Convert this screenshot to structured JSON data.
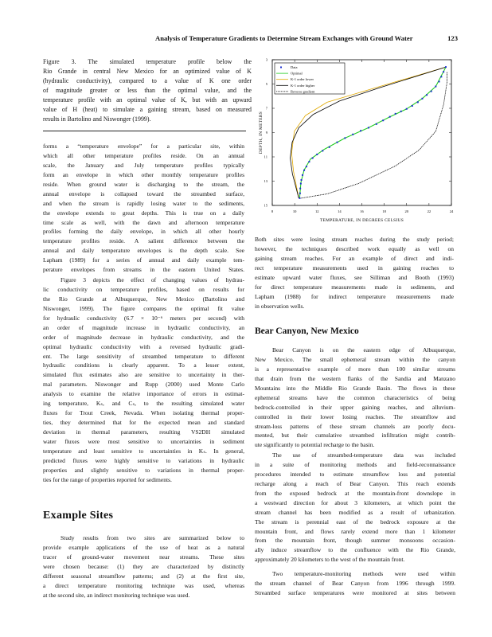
{
  "header": {
    "running_title": "Analysis of Temperature Gradients to Determine Stream Exchanges with Ground Water",
    "page_number": "123"
  },
  "caption": {
    "lines": [
      "Figure 3.  The simulated temperature profile below the",
      "Rio Grande in central New Mexico for an optimized value of K",
      "(hydraulic conductivity), compared to a value of K one order",
      "of magnitude greater or less than the optimal value, and the",
      "temperature profile with an optimal value of K, but with an upward",
      "value of H (heat) to simulate a gaining stream, based on measured",
      "results in Bartolino and Niswonger (1999)."
    ]
  },
  "left_column": {
    "para1": [
      "forms a “temperature envelope” for a particular site, within",
      "which all other temperature profiles reside. On an annual",
      "scale, the January and July temperature profiles typically",
      "form an envelope in which other monthly temperature profiles",
      "reside. When ground water is discharging to the stream, the",
      "annual envelope is collapsed toward the streambed surface,",
      "and when the stream is rapidly losing water to the sediments,",
      "the envelope extends to great depths. This is true on a daily",
      "time scale as well, with the dawn and afternoon temperature",
      "profiles forming the daily envelope, in which all other hourly",
      "temperature profiles reside. A salient difference between the",
      "annual and daily temperature envelopes is the depth scale. See",
      "Lapham (1989) for a series of annual and daily example tem-",
      "perature envelopes from streams in the eastern United States."
    ],
    "para2": [
      "Figure 3 depicts the effect of changing values of hydrau-",
      "lic conductivity on temperature profiles, based on results for",
      "the Rio Grande at Albuquerque, New Mexico (Bartolino and",
      "Niswonger, 1999). The figure compares the optimal fit value",
      "for hydraulic conductivity (6.7 × 10⁻⁶ meters per second) with",
      "an order of magnitude increase in hydraulic conductivity, an",
      "order of magnitude decrease in hydraulic conductivity, and the",
      "optimal hydraulic conductivity with a reversed hydraulic gradi-",
      "ent. The large sensitivity of streambed temperature to different",
      "hydraulic conditions is clearly apparent. To a lesser extent,",
      "simulated flux estimates also are sensitive to uncertainty in ther-",
      "mal parameters. Niswonger and Rupp (2000) used Monte Carlo",
      "analysis to examine the relative importance of errors in estimat-",
      "ing temperature, Kₛ, and Cₛ, to the resulting simulated water",
      "fluxes for Trout Creek, Nevada. When isolating thermal proper-",
      "ties, they determined that for the expected mean and standard",
      "deviation in thermal parameters, resulting VS2DH simulated",
      "water fluxes were most sensitive to uncertainties in sediment",
      "temperature and least sensitive to uncertainties in Kₛ. In general,",
      "predicted fluxes were highly sensitive to variations in hydraulic",
      "properties and slightly sensitive to variations in thermal proper-",
      "ties for the range of properties reported for sediments."
    ],
    "heading": "Example Sites",
    "para3": [
      "Study results from two sites are summarized below to",
      "provide example applications of the use of heat as a natural",
      "tracer of ground-water movement near streams. These sites",
      "were chosen because: (1) they are characterized by distinctly",
      "different seasonal streamflow patterns; and (2) at the first site,",
      "a direct temperature monitoring technique was used, whereas",
      "at the second site, an indirect monitoring technique was used."
    ]
  },
  "right_column": {
    "para1": [
      "Both sites were losing stream reaches during the study period;",
      "however, the techniques described work equally as well on",
      "gaining stream reaches. For an example of direct and indi-",
      "rect temperature measurements used in gaining reaches to",
      "estimate upward water fluxes, see Silliman and Booth (1993)",
      "for direct temperature measurements made in sediments, and",
      "Lapham (1988) for indirect temperature measurements made",
      "in observation wells."
    ],
    "heading": "Bear Canyon, New Mexico",
    "para2": [
      "Bear Canyon is on the eastern edge of Albuquerque,",
      "New Mexico. The small ephemeral stream within the canyon",
      "is a representative example of more than 100 similar streams",
      "that drain from the western flanks of the Sandia and Manzano",
      "Mountains into the Middle Rio Grande Basin. The flows in these",
      "ephemeral streams have the common characteristics of being",
      "bedrock-controlled in their upper gaining reaches, and alluvium-",
      "controlled in their lower losing reaches. The streamflow and",
      "stream-loss patterns of these stream channels are poorly docu-",
      "mented, but their cumulative streambed infiltration might contrib-",
      "ute significantly to potential recharge to the basin."
    ],
    "para3": [
      "The use of streambed-temperature data was included",
      "in a suite of monitoring methods and field-reconnaissance",
      "procedures intended to estimate streamflow loss and potential",
      "recharge along a reach of Bear Canyon. This reach extends",
      "from the exposed bedrock at the mountain-front downslope in",
      "a westward direction for about 3 kilometers, at which point the",
      "stream channel has been modified as a result of urbanization.",
      "The stream is perennial east of the bedrock exposure at the",
      "mountain front, and flows rarely extend more than 1 kilometer",
      "from the mountain front, though summer monsoons occasion-",
      "ally induce streamflow to the confluence with the Rio Grande,",
      "approximately 20 kilometers to the west of the mountain front."
    ],
    "para4": [
      "Two temperature-monitoring methods were used within",
      "the stream channel of Bear Canyon from 1996 through 1999.",
      "Streambed surface temperatures were monitored at sites between"
    ]
  },
  "chart_data": {
    "type": "line",
    "xlabel": "TEMPERATURE, IN DEGREES CELSIUS",
    "ylabel": "DEPTH, IN METERS",
    "xlim": [
      8,
      24
    ],
    "ylim": [
      3,
      15
    ],
    "y_inverted": true,
    "xticks": [
      "8",
      "10",
      "12",
      "14",
      "16",
      "18",
      "20",
      "22",
      "24"
    ],
    "yticks": [
      "3",
      "5",
      "7",
      "9",
      "11",
      "13",
      "15"
    ],
    "legend_position": "top-left",
    "grid": false,
    "series": [
      {
        "name": "Data",
        "style": "points",
        "color": "#1a2fd0",
        "points": [
          [
            10.45,
            14.4
          ],
          [
            10.48,
            14.0
          ],
          [
            10.5,
            13.6
          ],
          [
            10.55,
            13.2
          ],
          [
            10.6,
            12.9
          ],
          [
            10.7,
            12.5
          ],
          [
            10.85,
            12.1
          ],
          [
            11.05,
            11.8
          ],
          [
            11.3,
            11.4
          ],
          [
            11.6,
            11.1
          ],
          [
            12.0,
            10.8
          ],
          [
            12.5,
            10.5
          ],
          [
            13.1,
            10.2
          ],
          [
            13.8,
            9.8
          ],
          [
            14.5,
            9.45
          ],
          [
            15.2,
            9.15
          ],
          [
            15.9,
            8.85
          ],
          [
            16.6,
            8.6
          ],
          [
            17.3,
            8.3
          ],
          [
            17.9,
            8.0
          ],
          [
            18.5,
            7.7
          ],
          [
            19.0,
            7.45
          ],
          [
            19.5,
            7.25
          ],
          [
            20.0,
            7.05
          ],
          [
            20.5,
            6.8
          ],
          [
            21.0,
            6.5
          ],
          [
            21.4,
            6.2
          ],
          [
            21.8,
            5.9
          ],
          [
            22.2,
            5.6
          ],
          [
            22.6,
            5.2
          ],
          [
            22.9,
            4.8
          ],
          [
            23.1,
            4.4
          ],
          [
            23.3,
            4.0
          ],
          [
            23.5,
            3.6
          ]
        ]
      },
      {
        "name": "Optimal",
        "style": "line",
        "color": "#22cc22",
        "points": [
          [
            10.44,
            14.4
          ],
          [
            10.56,
            13.1
          ],
          [
            10.84,
            12.1
          ],
          [
            11.4,
            11.2
          ],
          [
            12.6,
            10.4
          ],
          [
            14.5,
            9.45
          ],
          [
            16.6,
            8.6
          ],
          [
            18.5,
            7.7
          ],
          [
            20.0,
            7.05
          ],
          [
            21.4,
            6.2
          ],
          [
            22.6,
            5.2
          ],
          [
            23.5,
            3.6
          ]
        ]
      },
      {
        "name": "K-1 order lower",
        "style": "line",
        "color": "#e0a800",
        "points": [
          [
            10.37,
            14.4
          ],
          [
            9.9,
            12.2
          ],
          [
            9.73,
            10.7
          ],
          [
            9.97,
            8.9
          ],
          [
            10.96,
            7.6
          ],
          [
            12.9,
            6.5
          ],
          [
            17.6,
            5.2
          ],
          [
            23.5,
            3.6
          ]
        ]
      },
      {
        "name": "K-1 order higher",
        "style": "line",
        "color": "#000000",
        "points": [
          [
            10.37,
            14.4
          ],
          [
            9.8,
            12.4
          ],
          [
            9.6,
            11.1
          ],
          [
            9.78,
            9.8
          ],
          [
            10.37,
            8.6
          ],
          [
            11.67,
            7.5
          ],
          [
            14.0,
            6.4
          ],
          [
            17.6,
            5.3
          ],
          [
            23.5,
            3.6
          ]
        ]
      },
      {
        "name": "Reverse gradient",
        "style": "dashed",
        "color": "#000000",
        "points": [
          [
            10.44,
            14.42
          ],
          [
            12.9,
            14.05
          ],
          [
            15.7,
            13.2
          ],
          [
            19.0,
            11.75
          ],
          [
            21.1,
            10.45
          ],
          [
            22.6,
            8.9
          ],
          [
            23.3,
            6.7
          ],
          [
            23.6,
            4.9
          ],
          [
            23.6,
            4.0
          ]
        ]
      }
    ]
  }
}
